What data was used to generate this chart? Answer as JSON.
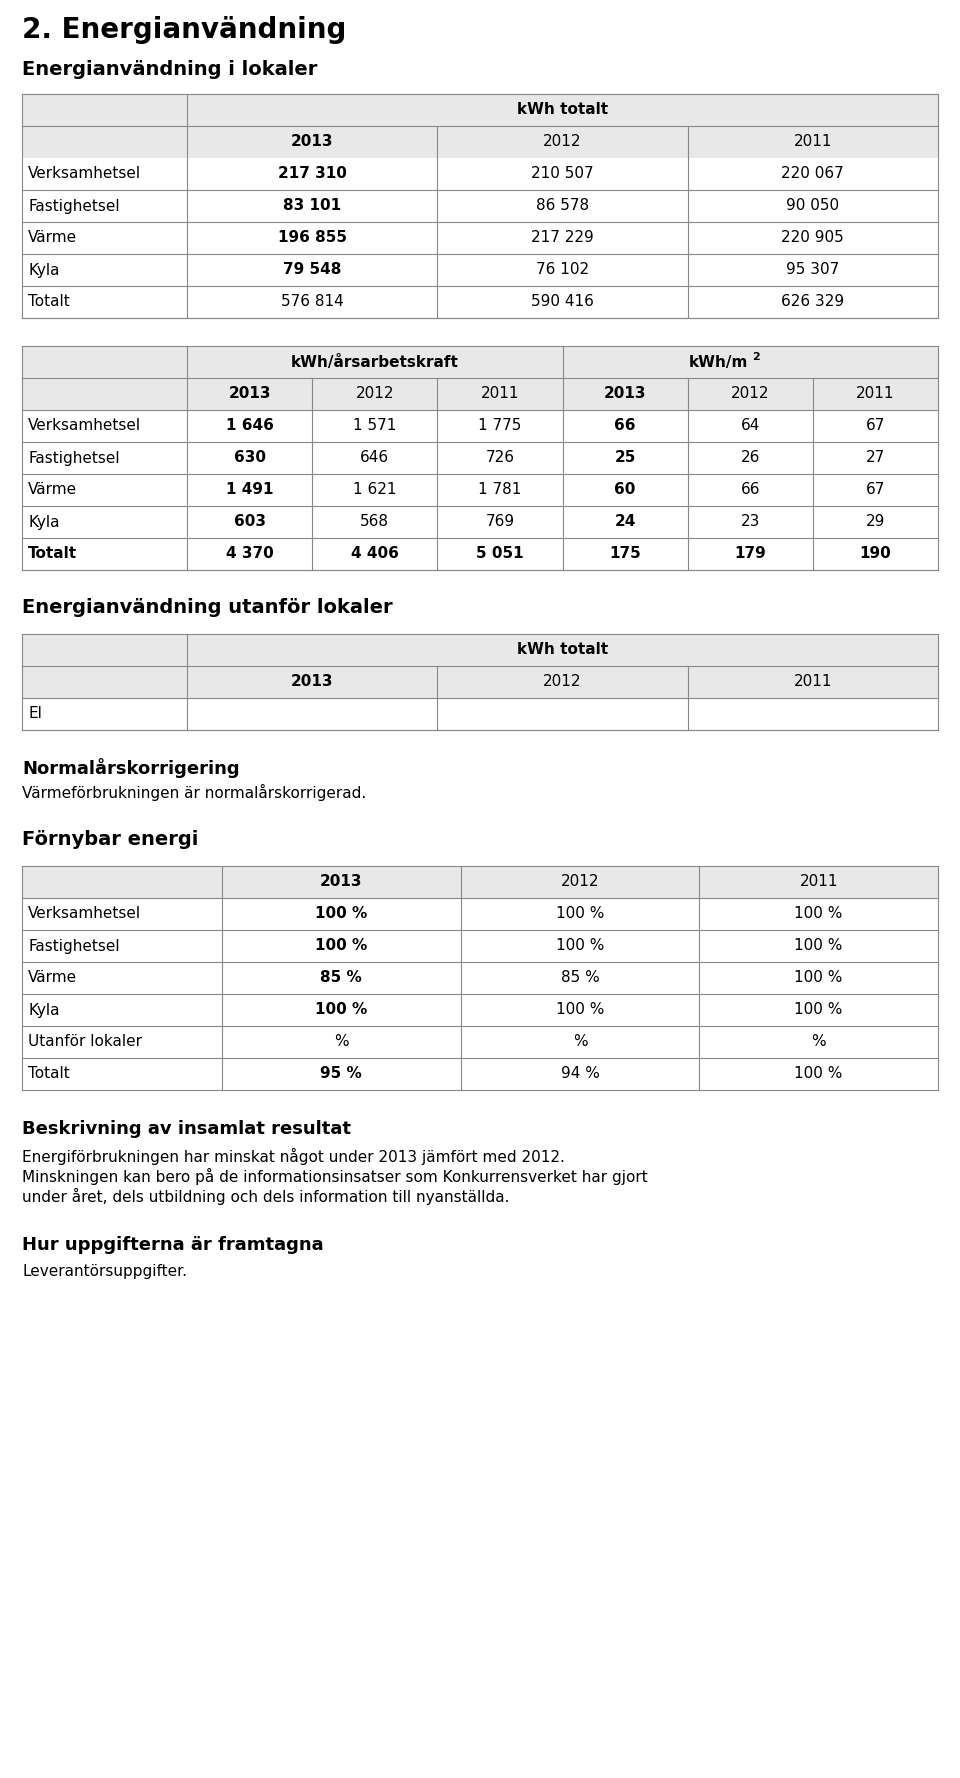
{
  "page_title": "2. Energianvändning",
  "section1_title": "Energianvändning i lokaler",
  "table1_header_main": "kWh totalt",
  "table1_years": [
    "2013",
    "2012",
    "2011"
  ],
  "table1_rows": [
    {
      "label": "Verksamhetsel",
      "vals": [
        "217 310",
        "210 507",
        "220 067"
      ],
      "bold_first": true,
      "bold_label": false
    },
    {
      "label": "Fastighetsel",
      "vals": [
        "83 101",
        "86 578",
        "90 050"
      ],
      "bold_first": true,
      "bold_label": false
    },
    {
      "label": "Värme",
      "vals": [
        "196 855",
        "217 229",
        "220 905"
      ],
      "bold_first": true,
      "bold_label": false
    },
    {
      "label": "Kyla",
      "vals": [
        "79 548",
        "76 102",
        "95 307"
      ],
      "bold_first": true,
      "bold_label": false
    },
    {
      "label": "Totalt",
      "vals": [
        "576 814",
        "590 416",
        "626 329"
      ],
      "bold_first": false,
      "bold_label": false
    }
  ],
  "table2_header1": "kWh/årsarbetskraft",
  "table2_header2": "kWh/m",
  "table2_sup": "2",
  "table2_years": [
    "2013",
    "2012",
    "2011",
    "2013",
    "2012",
    "2011"
  ],
  "table2_rows": [
    {
      "label": "Verksamhetsel",
      "vals": [
        "1 646",
        "1 571",
        "1 775",
        "66",
        "64",
        "67"
      ],
      "bold_2013": true
    },
    {
      "label": "Fastighetsel",
      "vals": [
        "630",
        "646",
        "726",
        "25",
        "26",
        "27"
      ],
      "bold_2013": true
    },
    {
      "label": "Värme",
      "vals": [
        "1 491",
        "1 621",
        "1 781",
        "60",
        "66",
        "67"
      ],
      "bold_2013": true
    },
    {
      "label": "Kyla",
      "vals": [
        "603",
        "568",
        "769",
        "24",
        "23",
        "29"
      ],
      "bold_2013": true
    },
    {
      "label": "Totalt",
      "vals": [
        "4 370",
        "4 406",
        "5 051",
        "175",
        "179",
        "190"
      ],
      "bold_2013": true,
      "bold_label": true
    }
  ],
  "section2_title": "Energianvändning utanför lokaler",
  "table3_header_main": "kWh totalt",
  "table3_years": [
    "2013",
    "2012",
    "2011"
  ],
  "table3_el_label": "El",
  "section3_title": "Normalårskorrigering",
  "section3_text": "Värmeförbrukningen är normalårskorrigerad.",
  "section4_title": "Förnybar energi",
  "table4_years": [
    "2013",
    "2012",
    "2011"
  ],
  "table4_rows": [
    {
      "label": "Verksamhetsel",
      "vals": [
        "100 %",
        "100 %",
        "100 %"
      ],
      "bold_first": true,
      "bold_label": false
    },
    {
      "label": "Fastighetsel",
      "vals": [
        "100 %",
        "100 %",
        "100 %"
      ],
      "bold_first": true,
      "bold_label": false
    },
    {
      "label": "Värme",
      "vals": [
        "85 %",
        "85 %",
        "100 %"
      ],
      "bold_first": true,
      "bold_label": false
    },
    {
      "label": "Kyla",
      "vals": [
        "100 %",
        "100 %",
        "100 %"
      ],
      "bold_first": true,
      "bold_label": false
    },
    {
      "label": "Utanför lokaler",
      "vals": [
        "%",
        "%",
        "%"
      ],
      "bold_first": false,
      "bold_label": false
    },
    {
      "label": "Totalt",
      "vals": [
        "95 %",
        "94 %",
        "100 %"
      ],
      "bold_first": true,
      "bold_label": false
    }
  ],
  "section5_title": "Beskrivning av insamlat resultat",
  "section5_text1": "Energiförbrukningen har minskat något under 2013 jämfört med 2012.",
  "section5_text2": "Minskningen kan bero på de informationsinsatser som Konkurrensverket har gjort",
  "section5_text3": "under året, dels utbildning och dels information till nyanställda.",
  "section6_title": "Hur uppgifterna är framtagna",
  "section6_text": "Leverantörsuppgifter.",
  "header_bg": "#e8e8e8",
  "row_bg": "#ffffff",
  "border_color": "#888888",
  "text_color": "#000000"
}
